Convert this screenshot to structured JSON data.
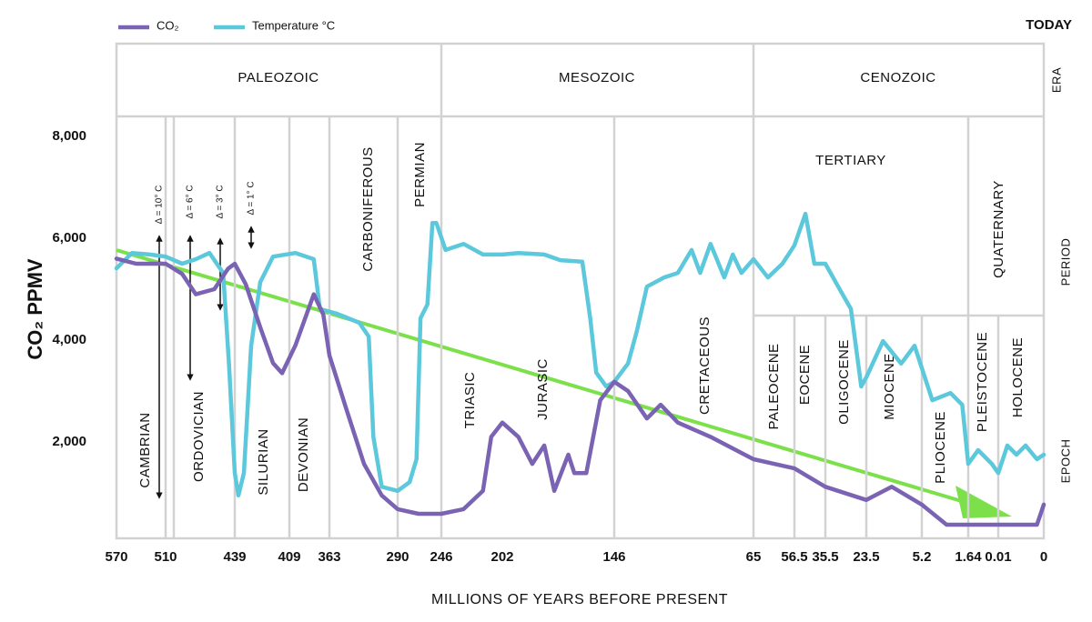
{
  "chart_data": {
    "type": "line",
    "today_label": "TODAY",
    "x_label": "MILLIONS OF YEARS BEFORE PRESENT",
    "y_label": "CO₂ PPMV",
    "row_labels": [
      "ERA",
      "PERIOD",
      "EPOCH"
    ],
    "eras": [
      "PALEOZOIC",
      "MESOZOIC",
      "CENOZOIC"
    ],
    "periods": [
      "CAMBRIAN",
      "ORDOVICIAN",
      "SILURIAN",
      "DEVONIAN",
      "CARBONIFEROUS",
      "PERMIAN",
      "TRIASIC",
      "JURASIC",
      "CRETACEOUS",
      "TERTIARY",
      "QUATERNARY"
    ],
    "epochs": [
      "PALEOCENE",
      "EOCENE",
      "OLIGOCENE",
      "MIOCENE",
      "PLIOCENE",
      "PLEISTOCENE",
      "HOLOCENE"
    ],
    "annotations": [
      "Δ = 10° C",
      "Δ = 6° C",
      "Δ = 3° C",
      "Δ = 1° C"
    ],
    "xticks": [
      570,
      510,
      439,
      409,
      363,
      290,
      246,
      202,
      146,
      65,
      56.5,
      35.5,
      23.5,
      5.2,
      1.64,
      0.01,
      0
    ],
    "xlim": [
      570,
      0
    ],
    "ylim": [
      0,
      8000
    ],
    "yticks": [
      {
        "value": 2000,
        "label": "2,000"
      },
      {
        "value": 4000,
        "label": "4,000"
      },
      {
        "value": 6000,
        "label": "6,000"
      },
      {
        "value": 8000,
        "label": "8,000"
      }
    ],
    "series": [
      {
        "name": "CO₂",
        "color": "#7a63b3",
        "x": [
          570,
          546,
          510,
          493,
          479,
          460,
          446,
          439,
          433,
          425,
          418,
          413,
          402,
          381,
          370,
          363,
          345,
          326,
          307,
          290,
          269,
          246,
          230,
          216,
          210,
          202,
          194,
          187,
          181,
          176,
          169,
          166,
          160,
          153,
          146,
          138,
          127,
          119,
          109,
          90,
          65,
          56.5,
          35.5,
          23.5,
          15.1,
          5.2,
          3.3,
          1.64,
          0.01,
          0.0015,
          0
        ],
        "values": [
          5600,
          5500,
          5500,
          5300,
          4900,
          5000,
          5400,
          5500,
          5100,
          4250,
          3550,
          3350,
          3900,
          4900,
          4500,
          3700,
          2650,
          1570,
          950,
          680,
          590,
          590,
          680,
          1040,
          2100,
          2380,
          2100,
          1570,
          1930,
          1040,
          1750,
          1390,
          1390,
          2820,
          3180,
          3000,
          2460,
          2730,
          2380,
          2100,
          1660,
          1480,
          1120,
          860,
          1120,
          770,
          375,
          375,
          375,
          375,
          770
        ]
      },
      {
        "name": "Temperature °C",
        "color": "#5cc8dc",
        "x": [
          570,
          551,
          529,
          510,
          493,
          479,
          465,
          451,
          445,
          439,
          437,
          434,
          430,
          425,
          418,
          402,
          381,
          374,
          355,
          331,
          321,
          316,
          307,
          290,
          278,
          271,
          267,
          260,
          255,
          251,
          243,
          230,
          216,
          202,
          194,
          181,
          173,
          162,
          158,
          155,
          150,
          146,
          138,
          133,
          127,
          117,
          109,
          101,
          96,
          90,
          82,
          77,
          72,
          65,
          62,
          59,
          56.5,
          49,
          43,
          35.5,
          31,
          28,
          25,
          23.5,
          18,
          12,
          7.6,
          4.4,
          3.0,
          2.1,
          1.64,
          1.1,
          0.36,
          0.01,
          0.008,
          0.006,
          0.004,
          0.0015,
          0
        ],
        "values": [
          5410,
          5710,
          5680,
          5640,
          5500,
          5590,
          5710,
          5320,
          3540,
          1390,
          950,
          1390,
          3890,
          5140,
          5640,
          5710,
          5590,
          4610,
          4520,
          4340,
          4070,
          2100,
          1120,
          1040,
          1210,
          1660,
          4430,
          4700,
          6300,
          6300,
          5770,
          5890,
          5680,
          5680,
          5710,
          5680,
          5570,
          5540,
          4430,
          3360,
          3090,
          3180,
          3540,
          4160,
          5050,
          5230,
          5320,
          5770,
          5320,
          5890,
          5230,
          5680,
          5320,
          5590,
          5230,
          5500,
          5860,
          6480,
          5500,
          5500,
          4960,
          4610,
          3090,
          3270,
          3980,
          3540,
          3890,
          2820,
          2960,
          2730,
          1570,
          1840,
          1570,
          1390,
          1930,
          1750,
          1930,
          1660,
          1750
        ]
      }
    ]
  }
}
